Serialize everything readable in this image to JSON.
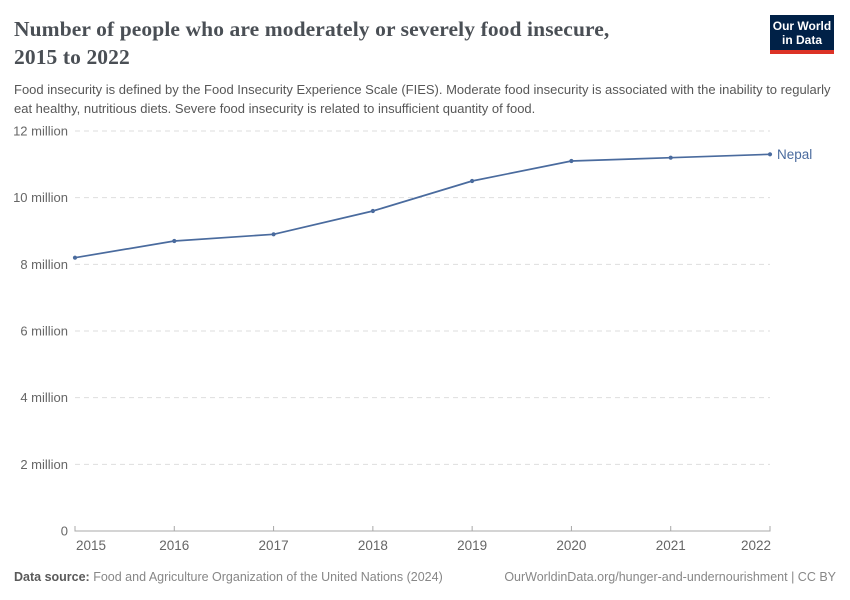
{
  "header": {
    "title": "Number of people who are moderately or severely food insecure, 2015 to 2022",
    "title_lines": [
      "Number of people who are moderately or severely food insecure,",
      "2015 to 2022"
    ],
    "subtitle": "Food insecurity is defined by the Food Insecurity Experience Scale (FIES). Moderate food insecurity is associated with the inability to regularly eat healthy, nutritious diets. Severe food insecurity is related to insufficient quantity of food.",
    "logo": {
      "line1": "Our World",
      "line2": "in Data"
    }
  },
  "chart_data": {
    "type": "line",
    "title": "Number of people who are moderately or severely food insecure, 2015 to 2022",
    "entity": "Nepal",
    "unit": "people",
    "x": [
      2015,
      2016,
      2017,
      2018,
      2019,
      2020,
      2021,
      2022
    ],
    "x_tick_labels": [
      "2015",
      "2016",
      "2017",
      "2018",
      "2019",
      "2020",
      "2021",
      "2022"
    ],
    "series": [
      {
        "name": "Nepal",
        "color": "#4a6b9e",
        "values_millions": [
          8.2,
          8.7,
          8.9,
          9.6,
          10.5,
          11.1,
          11.2,
          11.3
        ]
      }
    ],
    "ylim_millions": [
      0,
      12
    ],
    "y_ticks_millions": [
      0,
      2,
      4,
      6,
      8,
      10,
      12
    ],
    "y_tick_labels": [
      "0",
      "2 million",
      "4 million",
      "6 million",
      "8 million",
      "10 million",
      "12 million"
    ],
    "grid": "horizontal-dashed",
    "legend_position": "end-of-line-label"
  },
  "footer": {
    "data_source_label": "Data source:",
    "data_source": "Food and Agriculture Organization of the United Nations (2024)",
    "link": "OurWorldinData.org/hunger-and-undernourishment",
    "separator": "|",
    "license": "CC BY"
  },
  "colors": {
    "line": "#4a6b9e",
    "grid": "#dedede",
    "axis": "#a8a8a8",
    "tick_label": "#666666",
    "title": "#4a4f55",
    "subtitle": "#575757",
    "footer": "#878787",
    "logo_bg": "#002147",
    "logo_accent": "#dc3226"
  }
}
